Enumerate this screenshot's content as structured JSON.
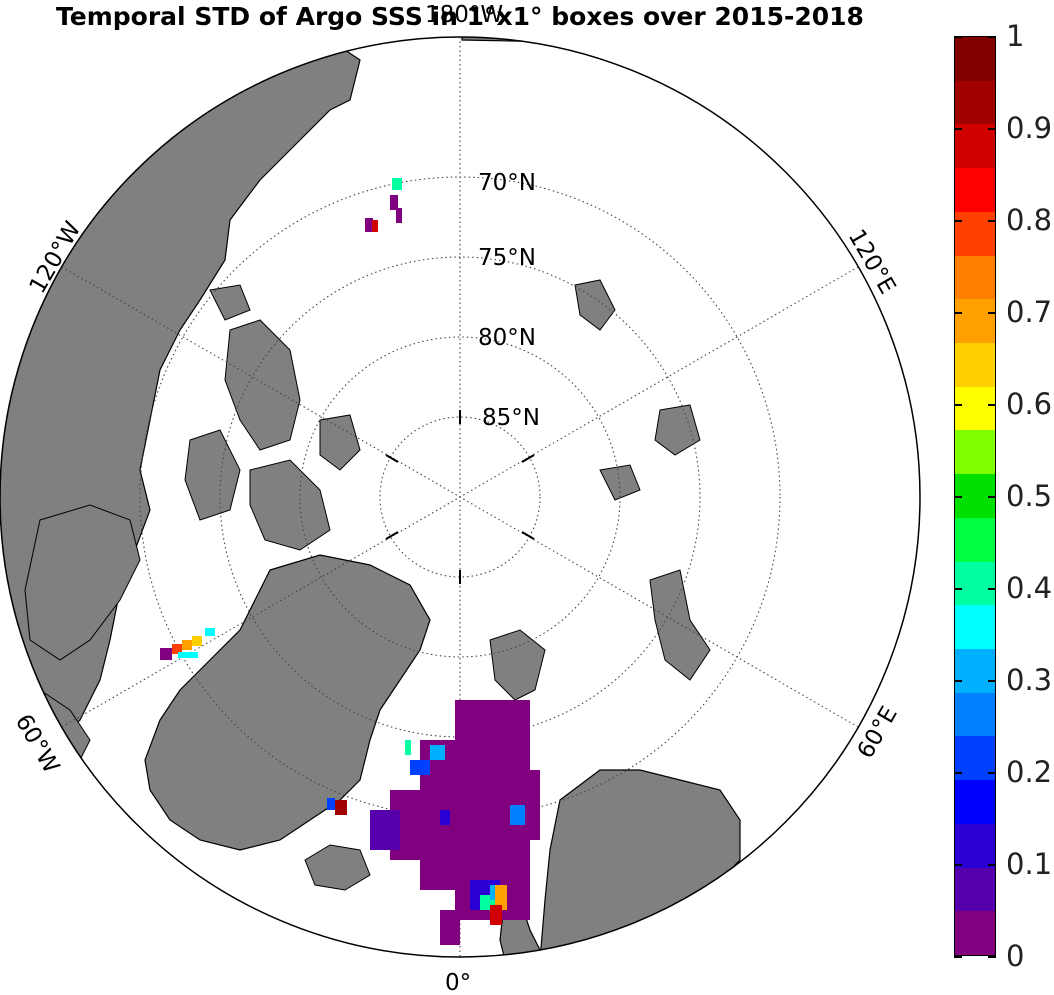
{
  "title": "Temporal STD of Argo SSS in 1°x1° boxes over 2015-2018",
  "map": {
    "projection": "north polar stereographic",
    "latitude_circles": [
      "70°N",
      "75°N",
      "80°N",
      "85°N"
    ],
    "longitude_labels": {
      "top": "180°W",
      "upper_left": "120°W",
      "upper_right": "120°E",
      "lower_left": "60°W",
      "lower_right": "60°E",
      "bottom": "0°"
    },
    "colors": {
      "land": "#808080",
      "ocean": "#ffffff",
      "grid": "#444444"
    }
  },
  "colorbar": {
    "ticks": [
      "0",
      "0.1",
      "0.2",
      "0.3",
      "0.4",
      "0.5",
      "0.6",
      "0.7",
      "0.8",
      "0.9",
      "1"
    ],
    "min": 0,
    "max": 1,
    "colors": [
      "#800080",
      "#5500aa",
      "#2a00d5",
      "#0000ff",
      "#0040ff",
      "#0080ff",
      "#00b0ff",
      "#00ffff",
      "#00ffa0",
      "#00ff40",
      "#00e000",
      "#80ff00",
      "#ffff00",
      "#ffd000",
      "#ffa000",
      "#ff8000",
      "#ff4000",
      "#ff0000",
      "#d00000",
      "#a00000",
      "#800000"
    ]
  }
}
